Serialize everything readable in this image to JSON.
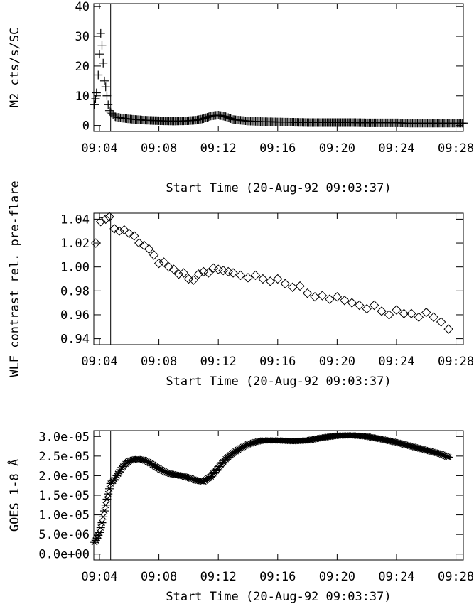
{
  "chart_data": [
    {
      "type": "scatter",
      "marker": "plus",
      "xlabel": "Start Time (20-Aug-92 09:03:37)",
      "ylabel": "M2 cts/s/SC",
      "xlim": [
        "09:03:37",
        "09:28:30"
      ],
      "ylim": [
        -2,
        41
      ],
      "grid": false,
      "xticks": [
        "09:04",
        "09:08",
        "09:12",
        "09:16",
        "09:20",
        "09:24",
        "09:28"
      ],
      "yticks": [
        0,
        10,
        20,
        30,
        40
      ],
      "ytick_labels": [
        "0",
        "10",
        "20",
        "30",
        "40"
      ],
      "vline_x": "09:04:45",
      "series": [
        {
          "values": [
            {
              "x": "09:03:40",
              "y": 7
            },
            {
              "x": "09:03:48",
              "y": 11
            },
            {
              "x": "09:03:55",
              "y": 17
            },
            {
              "x": "09:04:00",
              "y": 24
            },
            {
              "x": "09:04:05",
              "y": 31
            },
            {
              "x": "09:04:10",
              "y": 27
            },
            {
              "x": "09:04:15",
              "y": 21
            },
            {
              "x": "09:04:20",
              "y": 15
            },
            {
              "x": "09:04:25",
              "y": 13
            },
            {
              "x": "09:04:30",
              "y": 10
            },
            {
              "x": "09:04:35",
              "y": 7
            },
            {
              "x": "09:04:40",
              "y": 5
            },
            {
              "x": "09:04:50",
              "y": 4
            },
            {
              "x": "09:05:00",
              "y": 3
            },
            {
              "x": "09:05:30",
              "y": 2.5
            },
            {
              "x": "09:06:00",
              "y": 2.2
            },
            {
              "x": "09:06:30",
              "y": 2
            },
            {
              "x": "09:07:00",
              "y": 1.8
            },
            {
              "x": "09:08:00",
              "y": 1.6
            },
            {
              "x": "09:09:00",
              "y": 1.5
            },
            {
              "x": "09:10:00",
              "y": 1.6
            },
            {
              "x": "09:10:30",
              "y": 1.8
            },
            {
              "x": "09:11:00",
              "y": 2.3
            },
            {
              "x": "09:11:30",
              "y": 3.2
            },
            {
              "x": "09:12:00",
              "y": 3.5
            },
            {
              "x": "09:12:30",
              "y": 3
            },
            {
              "x": "09:13:00",
              "y": 2
            },
            {
              "x": "09:14:00",
              "y": 1.5
            },
            {
              "x": "09:15:00",
              "y": 1.3
            },
            {
              "x": "09:16:00",
              "y": 1.2
            },
            {
              "x": "09:17:00",
              "y": 1.1
            },
            {
              "x": "09:18:00",
              "y": 1
            },
            {
              "x": "09:19:00",
              "y": 1
            },
            {
              "x": "09:20:00",
              "y": 1
            },
            {
              "x": "09:21:00",
              "y": 1
            },
            {
              "x": "09:22:00",
              "y": 0.9
            },
            {
              "x": "09:23:00",
              "y": 0.9
            },
            {
              "x": "09:24:00",
              "y": 0.9
            },
            {
              "x": "09:25:00",
              "y": 0.8
            },
            {
              "x": "09:26:00",
              "y": 0.8
            },
            {
              "x": "09:27:00",
              "y": 0.8
            },
            {
              "x": "09:28:00",
              "y": 0.8
            },
            {
              "x": "09:28:30",
              "y": 0.8
            }
          ]
        }
      ]
    },
    {
      "type": "scatter",
      "marker": "diamond",
      "xlabel": "Start Time (20-Aug-92 09:03:37)",
      "ylabel": "WLF contrast rel. pre-flare",
      "xlim": [
        "09:03:37",
        "09:28:30"
      ],
      "ylim": [
        0.935,
        1.045
      ],
      "grid": false,
      "xticks": [
        "09:04",
        "09:08",
        "09:12",
        "09:16",
        "09:20",
        "09:24",
        "09:28"
      ],
      "yticks": [
        0.94,
        0.96,
        0.98,
        1.0,
        1.02,
        1.04
      ],
      "ytick_labels": [
        "0.94",
        "0.96",
        "0.98",
        "1.00",
        "1.02",
        "1.04"
      ],
      "vline_x": "09:04:45",
      "series": [
        {
          "values": [
            {
              "x": "09:03:45",
              "y": 1.02
            },
            {
              "x": "09:04:05",
              "y": 1.038
            },
            {
              "x": "09:04:25",
              "y": 1.04
            },
            {
              "x": "09:04:40",
              "y": 1.042
            },
            {
              "x": "09:05:00",
              "y": 1.032
            },
            {
              "x": "09:05:20",
              "y": 1.03
            },
            {
              "x": "09:05:40",
              "y": 1.031
            },
            {
              "x": "09:06:00",
              "y": 1.028
            },
            {
              "x": "09:06:20",
              "y": 1.026
            },
            {
              "x": "09:06:40",
              "y": 1.02
            },
            {
              "x": "09:07:00",
              "y": 1.018
            },
            {
              "x": "09:07:20",
              "y": 1.015
            },
            {
              "x": "09:07:40",
              "y": 1.01
            },
            {
              "x": "09:08:00",
              "y": 1.003
            },
            {
              "x": "09:08:20",
              "y": 1.004
            },
            {
              "x": "09:08:40",
              "y": 1.0
            },
            {
              "x": "09:09:00",
              "y": 0.998
            },
            {
              "x": "09:09:20",
              "y": 0.994
            },
            {
              "x": "09:09:40",
              "y": 0.995
            },
            {
              "x": "09:10:00",
              "y": 0.99
            },
            {
              "x": "09:10:20",
              "y": 0.989
            },
            {
              "x": "09:10:40",
              "y": 0.994
            },
            {
              "x": "09:11:00",
              "y": 0.996
            },
            {
              "x": "09:11:20",
              "y": 0.995
            },
            {
              "x": "09:11:40",
              "y": 0.999
            },
            {
              "x": "09:12:00",
              "y": 0.998
            },
            {
              "x": "09:12:20",
              "y": 0.997
            },
            {
              "x": "09:12:40",
              "y": 0.996
            },
            {
              "x": "09:13:00",
              "y": 0.995
            },
            {
              "x": "09:13:30",
              "y": 0.993
            },
            {
              "x": "09:14:00",
              "y": 0.991
            },
            {
              "x": "09:14:30",
              "y": 0.993
            },
            {
              "x": "09:15:00",
              "y": 0.99
            },
            {
              "x": "09:15:30",
              "y": 0.988
            },
            {
              "x": "09:16:00",
              "y": 0.99
            },
            {
              "x": "09:16:30",
              "y": 0.986
            },
            {
              "x": "09:17:00",
              "y": 0.983
            },
            {
              "x": "09:17:30",
              "y": 0.984
            },
            {
              "x": "09:18:00",
              "y": 0.978
            },
            {
              "x": "09:18:30",
              "y": 0.975
            },
            {
              "x": "09:19:00",
              "y": 0.976
            },
            {
              "x": "09:19:30",
              "y": 0.973
            },
            {
              "x": "09:20:00",
              "y": 0.975
            },
            {
              "x": "09:20:30",
              "y": 0.972
            },
            {
              "x": "09:21:00",
              "y": 0.97
            },
            {
              "x": "09:21:30",
              "y": 0.968
            },
            {
              "x": "09:22:00",
              "y": 0.965
            },
            {
              "x": "09:22:30",
              "y": 0.968
            },
            {
              "x": "09:23:00",
              "y": 0.963
            },
            {
              "x": "09:23:30",
              "y": 0.96
            },
            {
              "x": "09:24:00",
              "y": 0.964
            },
            {
              "x": "09:24:30",
              "y": 0.961
            },
            {
              "x": "09:25:00",
              "y": 0.961
            },
            {
              "x": "09:25:30",
              "y": 0.958
            },
            {
              "x": "09:26:00",
              "y": 0.962
            },
            {
              "x": "09:26:30",
              "y": 0.958
            },
            {
              "x": "09:27:00",
              "y": 0.954
            },
            {
              "x": "09:27:30",
              "y": 0.948
            }
          ]
        }
      ]
    },
    {
      "type": "scatter",
      "marker": "asterisk",
      "xlabel": "Start Time (20-Aug-92 09:03:37)",
      "ylabel": "GOES 1-8 Å",
      "xlim": [
        "09:03:37",
        "09:28:30"
      ],
      "ylim": [
        -1.5e-06,
        3.15e-05
      ],
      "grid": false,
      "xticks": [
        "09:04",
        "09:08",
        "09:12",
        "09:16",
        "09:20",
        "09:24",
        "09:28"
      ],
      "yticks": [
        0,
        5e-06,
        1e-05,
        1.5e-05,
        2e-05,
        2.5e-05,
        3e-05
      ],
      "ytick_labels": [
        "0.0e+00",
        "5.0e-06",
        "1.0e-05",
        "1.5e-05",
        "2.0e-05",
        "2.5e-05",
        "3.0e-05"
      ],
      "vline_x": "09:04:45",
      "series": [
        {
          "values": [
            {
              "x": "09:03:40",
              "y": 3e-06
            },
            {
              "x": "09:03:50",
              "y": 4e-06
            },
            {
              "x": "09:04:00",
              "y": 5.5e-06
            },
            {
              "x": "09:04:10",
              "y": 8e-06
            },
            {
              "x": "09:04:20",
              "y": 1.1e-05
            },
            {
              "x": "09:04:30",
              "y": 1.4e-05
            },
            {
              "x": "09:04:45",
              "y": 1.8e-05
            },
            {
              "x": "09:05:00",
              "y": 1.9e-05
            },
            {
              "x": "09:05:15",
              "y": 2.05e-05
            },
            {
              "x": "09:05:30",
              "y": 2.2e-05
            },
            {
              "x": "09:05:45",
              "y": 2.3e-05
            },
            {
              "x": "09:06:00",
              "y": 2.38e-05
            },
            {
              "x": "09:06:30",
              "y": 2.43e-05
            },
            {
              "x": "09:07:00",
              "y": 2.4e-05
            },
            {
              "x": "09:07:30",
              "y": 2.3e-05
            },
            {
              "x": "09:08:00",
              "y": 2.18e-05
            },
            {
              "x": "09:08:30",
              "y": 2.08e-05
            },
            {
              "x": "09:09:00",
              "y": 2.03e-05
            },
            {
              "x": "09:09:30",
              "y": 2e-05
            },
            {
              "x": "09:10:00",
              "y": 1.95e-05
            },
            {
              "x": "09:10:30",
              "y": 1.88e-05
            },
            {
              "x": "09:11:00",
              "y": 1.85e-05
            },
            {
              "x": "09:11:30",
              "y": 1.98e-05
            },
            {
              "x": "09:12:00",
              "y": 2.2e-05
            },
            {
              "x": "09:12:30",
              "y": 2.42e-05
            },
            {
              "x": "09:13:00",
              "y": 2.58e-05
            },
            {
              "x": "09:13:30",
              "y": 2.7e-05
            },
            {
              "x": "09:14:00",
              "y": 2.8e-05
            },
            {
              "x": "09:14:30",
              "y": 2.86e-05
            },
            {
              "x": "09:15:00",
              "y": 2.9e-05
            },
            {
              "x": "09:16:00",
              "y": 2.9e-05
            },
            {
              "x": "09:17:00",
              "y": 2.88e-05
            },
            {
              "x": "09:18:00",
              "y": 2.9e-05
            },
            {
              "x": "09:19:00",
              "y": 2.97e-05
            },
            {
              "x": "09:20:00",
              "y": 3.02e-05
            },
            {
              "x": "09:21:00",
              "y": 3.03e-05
            },
            {
              "x": "09:22:00",
              "y": 3e-05
            },
            {
              "x": "09:23:00",
              "y": 2.93e-05
            },
            {
              "x": "09:24:00",
              "y": 2.85e-05
            },
            {
              "x": "09:25:00",
              "y": 2.75e-05
            },
            {
              "x": "09:26:00",
              "y": 2.65e-05
            },
            {
              "x": "09:27:00",
              "y": 2.55e-05
            },
            {
              "x": "09:27:30",
              "y": 2.47e-05
            }
          ]
        }
      ]
    }
  ]
}
